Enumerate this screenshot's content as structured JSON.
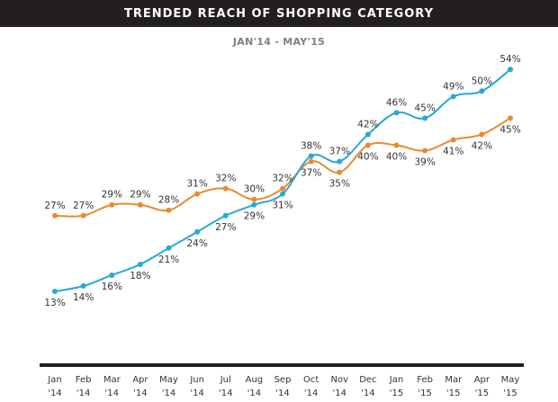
{
  "chart_data": {
    "type": "line",
    "title": "TRENDED REACH OF SHOPPING CATEGORY",
    "subtitle": "JAN'14 - MAY'15",
    "xlabel": "",
    "ylabel": "",
    "ylim": [
      0,
      60
    ],
    "grid": false,
    "legend": "none",
    "categories": [
      [
        "Jan",
        "'14"
      ],
      [
        "Feb",
        "'14"
      ],
      [
        "Mar",
        "'14"
      ],
      [
        "Apr",
        "'14"
      ],
      [
        "May",
        "'14"
      ],
      [
        "Jun",
        "'14"
      ],
      [
        "Jul",
        "'14"
      ],
      [
        "Aug",
        "'14"
      ],
      [
        "Sep",
        "'14"
      ],
      [
        "Oct",
        "'14"
      ],
      [
        "Nov",
        "'14"
      ],
      [
        "Dec",
        "'14"
      ],
      [
        "Jan",
        "'15"
      ],
      [
        "Feb",
        "'15"
      ],
      [
        "Mar",
        "'15"
      ],
      [
        "Apr",
        "'15"
      ],
      [
        "May",
        "'15"
      ]
    ],
    "series": [
      {
        "name": "blue-series",
        "color": "#27a9d6",
        "values": [
          13,
          14,
          16,
          18,
          21,
          24,
          27,
          29,
          31,
          38,
          37,
          42,
          46,
          45,
          49,
          50,
          54
        ],
        "label_pos": [
          "below",
          "below",
          "below",
          "below",
          "below",
          "below",
          "below",
          "below",
          "below",
          "above",
          "above",
          "above",
          "above",
          "above",
          "above",
          "above",
          "above"
        ]
      },
      {
        "name": "orange-series",
        "color": "#ea8a2e",
        "values": [
          27,
          27,
          29,
          29,
          28,
          31,
          32,
          30,
          32,
          37,
          35,
          40,
          40,
          39,
          41,
          42,
          45
        ],
        "label_pos": [
          "above",
          "above",
          "above",
          "above",
          "above",
          "above",
          "above",
          "above",
          "above",
          "below",
          "below",
          "below",
          "below",
          "below",
          "below",
          "below",
          "below"
        ]
      }
    ],
    "value_suffix": "%"
  },
  "colors": {
    "title_bar": "#231f20",
    "axis_bar": "#231f20"
  }
}
